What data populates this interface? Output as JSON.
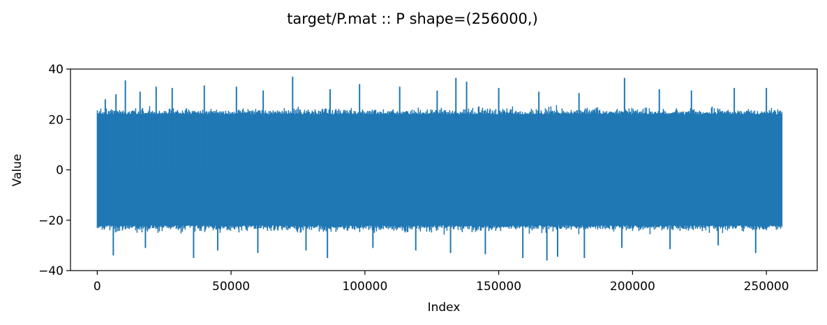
{
  "chart_data": {
    "type": "line",
    "title": "target/P.mat :: P  shape=(256000,)",
    "xlabel": "Index",
    "ylabel": "Value",
    "xlim": [
      -10000,
      269000
    ],
    "ylim": [
      -40,
      40
    ],
    "x_ticks": [
      0,
      50000,
      100000,
      150000,
      200000,
      250000
    ],
    "x_tick_labels": [
      "0",
      "50000",
      "100000",
      "150000",
      "200000",
      "250000"
    ],
    "y_ticks": [
      -40,
      -20,
      0,
      20,
      40
    ],
    "y_tick_labels": [
      "−40",
      "−20",
      "0",
      "20",
      "40"
    ],
    "grid": false,
    "series": [
      {
        "name": "P",
        "color": "#1f77b4",
        "n_points": 256000,
        "x_range": [
          0,
          255999
        ],
        "core_envelope": [
          -22,
          22
        ],
        "extent": [
          -36,
          37
        ],
        "spikes": [
          {
            "x": 3000,
            "y": 28
          },
          {
            "x": 7000,
            "y": 30
          },
          {
            "x": 10500,
            "y": 35.5
          },
          {
            "x": 16000,
            "y": 31
          },
          {
            "x": 22000,
            "y": 33
          },
          {
            "x": 28000,
            "y": 32.5
          },
          {
            "x": 40000,
            "y": 33.5
          },
          {
            "x": 52000,
            "y": 33
          },
          {
            "x": 62000,
            "y": 31.5
          },
          {
            "x": 73000,
            "y": 37
          },
          {
            "x": 87000,
            "y": 32
          },
          {
            "x": 98000,
            "y": 34
          },
          {
            "x": 113000,
            "y": 33
          },
          {
            "x": 127000,
            "y": 31.5
          },
          {
            "x": 134000,
            "y": 36.5
          },
          {
            "x": 138000,
            "y": 35
          },
          {
            "x": 150000,
            "y": 32.5
          },
          {
            "x": 165000,
            "y": 31
          },
          {
            "x": 180000,
            "y": 30.5
          },
          {
            "x": 197000,
            "y": 36.5
          },
          {
            "x": 210000,
            "y": 32
          },
          {
            "x": 222000,
            "y": 31.5
          },
          {
            "x": 238000,
            "y": 32.5
          },
          {
            "x": 250000,
            "y": 32.5
          },
          {
            "x": 6000,
            "y": -34
          },
          {
            "x": 18000,
            "y": -31
          },
          {
            "x": 36000,
            "y": -35
          },
          {
            "x": 45000,
            "y": -32
          },
          {
            "x": 60000,
            "y": -33
          },
          {
            "x": 78000,
            "y": -32
          },
          {
            "x": 86000,
            "y": -35
          },
          {
            "x": 103000,
            "y": -31
          },
          {
            "x": 119000,
            "y": -32
          },
          {
            "x": 132000,
            "y": -33
          },
          {
            "x": 145000,
            "y": -33.5
          },
          {
            "x": 159000,
            "y": -35
          },
          {
            "x": 168000,
            "y": -36
          },
          {
            "x": 172000,
            "y": -34.5
          },
          {
            "x": 182000,
            "y": -35
          },
          {
            "x": 196000,
            "y": -31
          },
          {
            "x": 214000,
            "y": -31.5
          },
          {
            "x": 232000,
            "y": -30
          },
          {
            "x": 246000,
            "y": -33
          }
        ]
      }
    ]
  }
}
